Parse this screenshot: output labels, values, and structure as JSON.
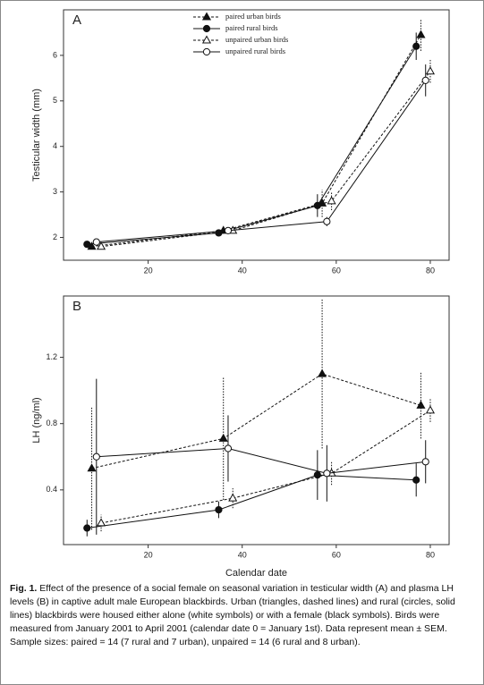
{
  "chart_data": [
    {
      "type": "line",
      "panel": "A",
      "ylabel": "Testicular width (mm)",
      "xlim": [
        2,
        84
      ],
      "ylim": [
        1.5,
        7
      ],
      "xticks": [
        20,
        40,
        60,
        80
      ],
      "yticks": [
        2,
        3,
        4,
        5,
        6
      ],
      "legend": "upper center",
      "series": [
        {
          "name": "paired urban birds",
          "color": "#111111",
          "marker": "triangle",
          "filled": true,
          "dashed": true,
          "x": [
            8,
            36,
            57,
            78
          ],
          "values": [
            1.8,
            2.15,
            2.75,
            6.45
          ],
          "errors": [
            0.05,
            0.07,
            0.3,
            0.35
          ]
        },
        {
          "name": "paired rural birds",
          "color": "#111111",
          "marker": "circle",
          "filled": true,
          "dashed": false,
          "x": [
            7,
            35,
            56,
            77
          ],
          "values": [
            1.85,
            2.1,
            2.7,
            6.2
          ],
          "errors": [
            0.05,
            0.06,
            0.25,
            0.3
          ]
        },
        {
          "name": "unpaired urban birds",
          "color": "#111111",
          "marker": "triangle",
          "filled": false,
          "dashed": true,
          "x": [
            10,
            38,
            59,
            80
          ],
          "values": [
            1.8,
            2.15,
            2.8,
            5.65
          ],
          "errors": [
            0.05,
            0.06,
            0.2,
            0.25
          ]
        },
        {
          "name": "unpaired rural birds",
          "color": "#111111",
          "marker": "circle",
          "filled": false,
          "dashed": false,
          "x": [
            9,
            37,
            58,
            79
          ],
          "values": [
            1.9,
            2.15,
            2.35,
            5.45
          ],
          "errors": [
            0.05,
            0.06,
            0.1,
            0.35
          ]
        }
      ]
    },
    {
      "type": "line",
      "panel": "B",
      "ylabel": "LH (ng/ml)",
      "xlabel": "Calendar date",
      "xlim": [
        2,
        84
      ],
      "ylim": [
        0.07,
        1.57
      ],
      "xticks": [
        20,
        40,
        60,
        80
      ],
      "yticks": [
        0.4,
        0.8,
        1.2
      ],
      "series": [
        {
          "name": "paired urban birds",
          "color": "#111111",
          "marker": "triangle",
          "filled": true,
          "dashed": true,
          "x": [
            8,
            36,
            57,
            78
          ],
          "values": [
            0.53,
            0.71,
            1.1,
            0.91
          ],
          "errors": [
            0.37,
            0.37,
            0.45,
            0.2
          ]
        },
        {
          "name": "paired rural birds",
          "color": "#111111",
          "marker": "circle",
          "filled": true,
          "dashed": false,
          "x": [
            7,
            35,
            56,
            77
          ],
          "values": [
            0.17,
            0.28,
            0.49,
            0.46
          ],
          "errors": [
            0.05,
            0.05,
            0.15,
            0.1
          ]
        },
        {
          "name": "unpaired urban birds",
          "color": "#111111",
          "marker": "triangle",
          "filled": false,
          "dashed": true,
          "x": [
            10,
            38,
            59,
            80
          ],
          "values": [
            0.2,
            0.35,
            0.5,
            0.88
          ],
          "errors": [
            0.05,
            0.06,
            0.07,
            0.07
          ]
        },
        {
          "name": "unpaired rural birds",
          "color": "#111111",
          "marker": "circle",
          "filled": false,
          "dashed": false,
          "x": [
            9,
            37,
            58,
            79
          ],
          "values": [
            0.6,
            0.65,
            0.5,
            0.57
          ],
          "errors": [
            0.47,
            0.2,
            0.17,
            0.13
          ]
        }
      ]
    }
  ],
  "caption": {
    "label": "Fig. 1.",
    "text": "Effect of the presence of a social female on seasonal variation in testicular width (A) and plasma LH levels (B) in captive adult male European blackbirds. Urban (triangles, dashed lines) and rural (circles, solid lines) blackbirds were housed either alone (white symbols) or with a female (black symbols). Birds were measured from January 2001 to April 2001 (calendar date 0 = January 1st). Data represent mean ± SEM. Sample sizes: paired = 14 (7 rural and 7 urban), unpaired = 14 (6 rural and 8 urban)."
  }
}
